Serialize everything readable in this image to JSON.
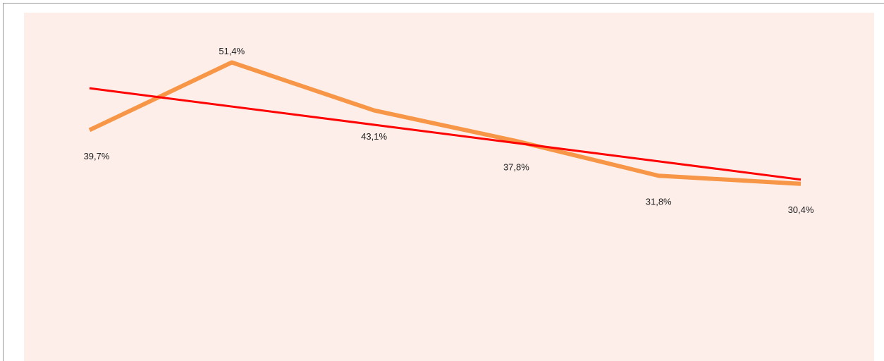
{
  "chart_data": {
    "type": "line",
    "series": [
      {
        "color": "#f79646",
        "values": [
          39.7,
          51.4,
          43.1,
          37.8,
          31.8,
          30.4
        ],
        "value_labels": [
          "39,7%",
          "51,4%",
          "43,1%",
          "37,8%",
          "31,8%",
          "30,4%"
        ]
      }
    ],
    "ylim": [
      0,
      60
    ],
    "trendline": {
      "type": "linear",
      "color": "#ff0000"
    }
  }
}
